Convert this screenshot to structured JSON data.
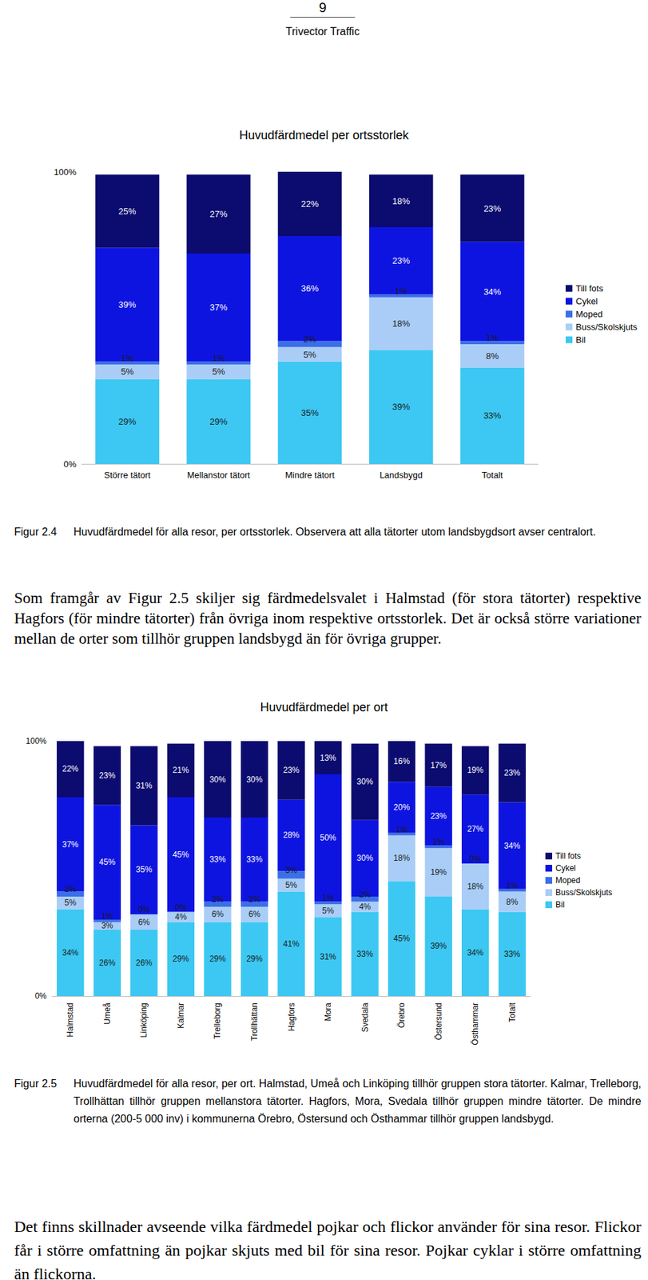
{
  "header": {
    "page_number": "9",
    "company": "Trivector Traffic"
  },
  "chart_data": [
    {
      "type": "bar",
      "title": "Huvudfärdmedel per ortsstorlek",
      "categories": [
        "Större tätort",
        "Mellanstor tätort",
        "Mindre tätort",
        "Landsbygd",
        "Totalt"
      ],
      "series": [
        {
          "name": "Bil",
          "color": "#3cc8f2",
          "values": [
            29,
            29,
            35,
            39,
            33
          ],
          "value_labels": [
            "29%",
            "29%",
            "35%",
            "39%",
            "33%"
          ]
        },
        {
          "name": "Buss/Skolskjuts",
          "color": "#a9cdf7",
          "values": [
            5,
            5,
            5,
            18,
            8
          ],
          "value_labels": [
            "5%",
            "5%",
            "5%",
            "18%",
            "8%"
          ]
        },
        {
          "name": "Moped",
          "color": "#3b6fe8",
          "values": [
            1,
            1,
            2,
            1,
            1
          ],
          "value_labels": [
            "1%",
            "1%",
            "2%",
            "1%",
            "1%"
          ]
        },
        {
          "name": "Cykel",
          "color": "#0e14e0",
          "values": [
            39,
            37,
            36,
            23,
            34
          ],
          "value_labels": [
            "39%",
            "37%",
            "36%",
            "23%",
            "34%"
          ]
        },
        {
          "name": "Till fots",
          "color": "#0b0b70",
          "values": [
            25,
            27,
            22,
            18,
            23
          ],
          "value_labels": [
            "25%",
            "27%",
            "22%",
            "18%",
            "23%"
          ]
        }
      ],
      "ylim": [
        0,
        100
      ],
      "yticks": [
        {
          "value": 0,
          "label": "0%"
        },
        {
          "value": 100,
          "label": "100%"
        }
      ],
      "stacked": true,
      "data_labels": true,
      "grid": false,
      "legend": "right"
    },
    {
      "type": "bar",
      "title": "Huvudfärdmedel per ort",
      "categories": [
        "Halmstad",
        "Umeå",
        "Linköping",
        "Kalmar",
        "Trelleborg",
        "Trollhättan",
        "Hagfors",
        "Mora",
        "Svedala",
        "Örebro",
        "Östersund",
        "Östhammar",
        "Totalt"
      ],
      "series": [
        {
          "name": "Bil",
          "color": "#3cc8f2",
          "values": [
            34,
            26,
            26,
            29,
            29,
            29,
            41,
            31,
            33,
            45,
            39,
            34,
            33
          ],
          "value_labels": [
            "34%",
            "26%",
            "26%",
            "29%",
            "29%",
            "29%",
            "41%",
            "31%",
            "33%",
            "45%",
            "39%",
            "34%",
            "33%"
          ]
        },
        {
          "name": "Buss/Skolskjuts",
          "color": "#a9cdf7",
          "values": [
            5,
            3,
            6,
            4,
            6,
            6,
            5,
            5,
            4,
            18,
            19,
            18,
            8
          ],
          "value_labels": [
            "5%",
            "3%",
            "6%",
            "4%",
            "6%",
            "6%",
            "5%",
            "5%",
            "4%",
            "18%",
            "19%",
            "18%",
            "8%"
          ]
        },
        {
          "name": "Moped",
          "color": "#3b6fe8",
          "values": [
            2,
            1,
            0,
            0,
            2,
            2,
            3,
            1,
            2,
            1,
            1,
            0,
            1
          ],
          "value_labels": [
            "2%",
            "1%",
            "0%",
            "0%",
            "2%",
            "2%",
            "3%",
            "1%",
            "2%",
            "1%",
            "1%",
            "0%",
            "1%"
          ]
        },
        {
          "name": "Cykel",
          "color": "#0e14e0",
          "values": [
            37,
            45,
            35,
            45,
            33,
            33,
            28,
            50,
            30,
            20,
            23,
            27,
            34
          ],
          "value_labels": [
            "37%",
            "45%",
            "35%",
            "45%",
            "33%",
            "33%",
            "28%",
            "50%",
            "30%",
            "20%",
            "23%",
            "27%",
            "34%"
          ]
        },
        {
          "name": "Till fots",
          "color": "#0b0b70",
          "values": [
            22,
            23,
            31,
            21,
            30,
            30,
            23,
            13,
            30,
            16,
            17,
            19,
            23
          ],
          "value_labels": [
            "22%",
            "23%",
            "31%",
            "21%",
            "30%",
            "30%",
            "23%",
            "13%",
            "30%",
            "16%",
            "17%",
            "19%",
            "23%"
          ]
        }
      ],
      "ylim": [
        0,
        100
      ],
      "yticks": [
        {
          "value": 0,
          "label": "0%"
        },
        {
          "value": 100,
          "label": "100%"
        }
      ],
      "stacked": true,
      "data_labels": true,
      "grid": false,
      "legend": "right"
    }
  ],
  "captions": [
    {
      "label": "Figur 2.4",
      "text": "Huvudfärdmedel för alla resor, per ortsstorlek. Observera att alla tätorter utom landsbygdsort avser centralort."
    },
    {
      "label": "Figur 2.5",
      "text": "Huvudfärdmedel för alla resor, per ort. Halmstad, Umeå och Linköping tillhör gruppen stora tätorter. Kalmar, Trelleborg, Trollhättan tillhör gruppen mellanstora tätorter. Hagfors, Mora, Svedala tillhör gruppen mindre tätorter. De mindre orterna (200-5 000 inv) i kommunerna Örebro, Östersund och Östhammar tillhör gruppen landsbygd."
    }
  ],
  "paragraphs": [
    "Som framgår av Figur 2.5 skiljer sig färdmedelsvalet i Halmstad (för stora tätorter) respektive Hagfors (för mindre tätorter) från övriga inom respektive ortsstorlek. Det är också större variationer mellan de orter som tillhör gruppen landsbygd än för övriga grupper.",
    "Det finns skillnader avseende vilka färdmedel pojkar och flickor använder för sina resor. Flickor får i större omfattning än pojkar skjuts med bil för sina resor. Pojkar cyklar i större omfattning än flickorna."
  ]
}
